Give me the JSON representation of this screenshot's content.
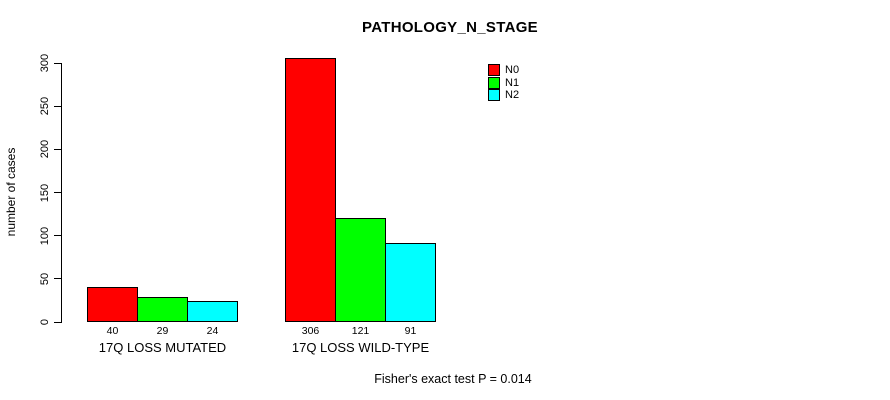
{
  "title": "PATHOLOGY_N_STAGE",
  "footnote": "Fisher's exact test P = 0.014",
  "chart_data": {
    "type": "bar",
    "title": "PATHOLOGY_N_STAGE",
    "xlabel": "",
    "ylabel": "number of cases",
    "ylim": [
      0,
      300
    ],
    "yticks": [
      0,
      50,
      100,
      150,
      200,
      250,
      300
    ],
    "grid": false,
    "bar_value_labels": true,
    "legend_position": "top-right",
    "categories": [
      "17Q LOSS MUTATED",
      "17Q LOSS WILD-TYPE"
    ],
    "series": [
      {
        "name": "N0",
        "color": "#ff0000",
        "values": [
          40,
          306
        ]
      },
      {
        "name": "N1",
        "color": "#00ff00",
        "values": [
          29,
          121
        ]
      },
      {
        "name": "N2",
        "color": "#00ffff",
        "values": [
          24,
          91
        ]
      }
    ],
    "annotation": "Fisher's exact test P = 0.014"
  }
}
